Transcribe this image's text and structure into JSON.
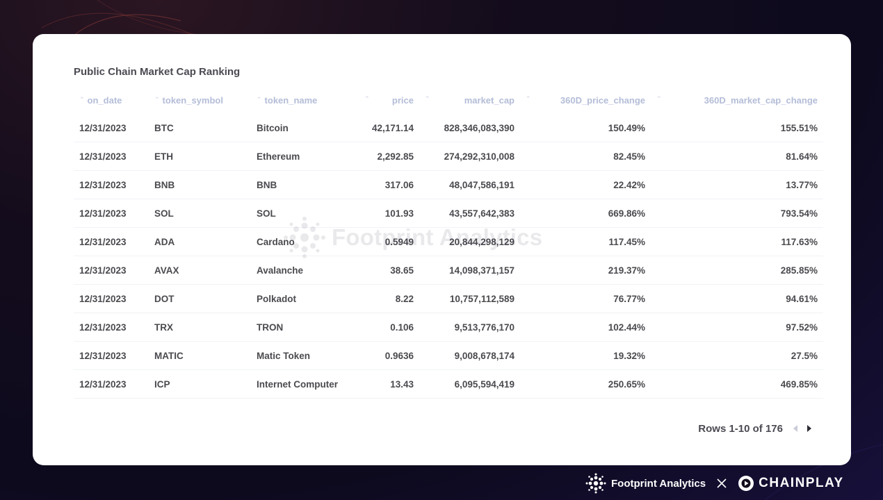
{
  "title": "Public Chain Market Cap Ranking",
  "columns": [
    "on_date",
    "token_symbol",
    "token_name",
    "price",
    "market_cap",
    "360D_price_change",
    "360D_market_cap_change"
  ],
  "rows": [
    [
      "12/31/2023",
      "BTC",
      "Bitcoin",
      "42,171.14",
      "828,346,083,390",
      "150.49%",
      "155.51%"
    ],
    [
      "12/31/2023",
      "ETH",
      "Ethereum",
      "2,292.85",
      "274,292,310,008",
      "82.45%",
      "81.64%"
    ],
    [
      "12/31/2023",
      "BNB",
      "BNB",
      "317.06",
      "48,047,586,191",
      "22.42%",
      "13.77%"
    ],
    [
      "12/31/2023",
      "SOL",
      "SOL",
      "101.93",
      "43,557,642,383",
      "669.86%",
      "793.54%"
    ],
    [
      "12/31/2023",
      "ADA",
      "Cardano",
      "0.5949",
      "20,844,298,129",
      "117.45%",
      "117.63%"
    ],
    [
      "12/31/2023",
      "AVAX",
      "Avalanche",
      "38.65",
      "14,098,371,157",
      "219.37%",
      "285.85%"
    ],
    [
      "12/31/2023",
      "DOT",
      "Polkadot",
      "8.22",
      "10,757,112,589",
      "76.77%",
      "94.61%"
    ],
    [
      "12/31/2023",
      "TRX",
      "TRON",
      "0.106",
      "9,513,776,170",
      "102.44%",
      "97.52%"
    ],
    [
      "12/31/2023",
      "MATIC",
      "Matic Token",
      "0.9636",
      "9,008,678,174",
      "19.32%",
      "27.5%"
    ],
    [
      "12/31/2023",
      "ICP",
      "Internet Computer",
      "13.43",
      "6,095,594,419",
      "250.65%",
      "469.85%"
    ]
  ],
  "pagination": {
    "label": "Rows 1-10 of 176"
  },
  "watermark": {
    "text": "Footprint Analytics",
    "icon": "footprint-logo-icon"
  },
  "footer": {
    "left_brand": "Footprint Analytics",
    "right_brand": "CHAINPLAY"
  },
  "colors": {
    "card_background": "#ffffff",
    "header_text": "#b4bdd8",
    "cell_text": "#4a4a4f",
    "page_background": "#130c1c"
  }
}
